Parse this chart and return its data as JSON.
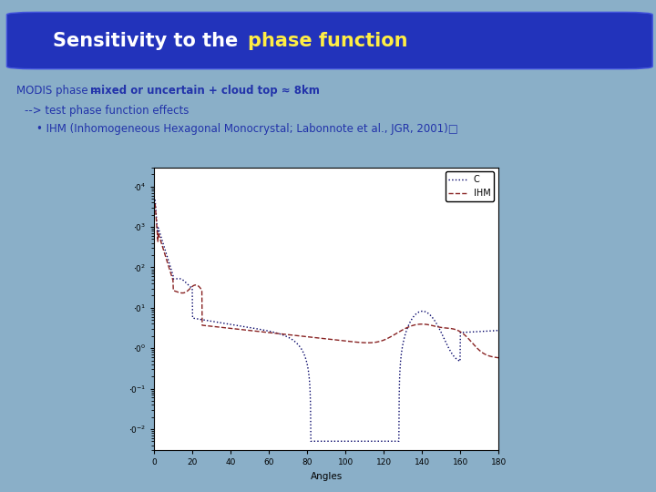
{
  "title_white": "Sensitivity to the ",
  "title_yellow": "phase function",
  "title_bg_color": "#2233bb",
  "title_text_color_white": "#ffffff",
  "title_text_color_yellow": "#ffee44",
  "bg_color_slide": "#8aafc8",
  "text_color": "#2233aa",
  "xlabel": "Angles",
  "legend_labels": [
    "C",
    "IHM"
  ],
  "legend_colors": [
    "#000066",
    "#882222"
  ],
  "x_ticks": [
    0,
    20,
    40,
    60,
    80,
    100,
    120,
    140,
    160,
    180
  ],
  "y_tick_labels": [
    "10^-2",
    "10^-1",
    "10^0",
    "10^1",
    "10^2",
    "10^3",
    "10^4"
  ],
  "plot_bg": "#ffffff",
  "plot_border_color": "#000000"
}
